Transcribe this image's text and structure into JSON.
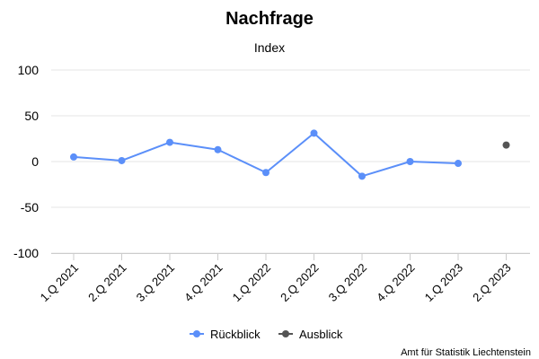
{
  "title": "Nachfrage",
  "subtitle": "Index",
  "credit": "Amt für Statistik Liechtenstein",
  "colors": {
    "rueckblick": "#5b8ff9",
    "ausblick": "#555555",
    "grid": "#e6e6e6",
    "axis": "#cccccc"
  },
  "legend": {
    "items": [
      {
        "label": "Rückblick",
        "color": "#5b8ff9"
      },
      {
        "label": "Ausblick",
        "color": "#555555"
      }
    ]
  },
  "chart_data": {
    "type": "line",
    "categories": [
      "1.Q 2021",
      "2.Q 2021",
      "3.Q 2021",
      "4.Q 2021",
      "1.Q 2022",
      "2.Q 2022",
      "3.Q 2022",
      "4.Q 2022",
      "1.Q 2023",
      "2.Q 2023"
    ],
    "series": [
      {
        "name": "Rückblick",
        "values": [
          5,
          1,
          21,
          13,
          -12,
          31,
          -16,
          0,
          -2,
          null
        ]
      },
      {
        "name": "Ausblick",
        "values": [
          null,
          null,
          null,
          null,
          null,
          null,
          null,
          null,
          null,
          18
        ]
      }
    ],
    "ylim": [
      -100,
      100
    ],
    "yticks": [
      100,
      50,
      0,
      -50,
      -100
    ],
    "yticklabels": [
      "100",
      "50",
      "0",
      "-50",
      "-100"
    ],
    "grid": true,
    "legend_position": "bottom"
  }
}
